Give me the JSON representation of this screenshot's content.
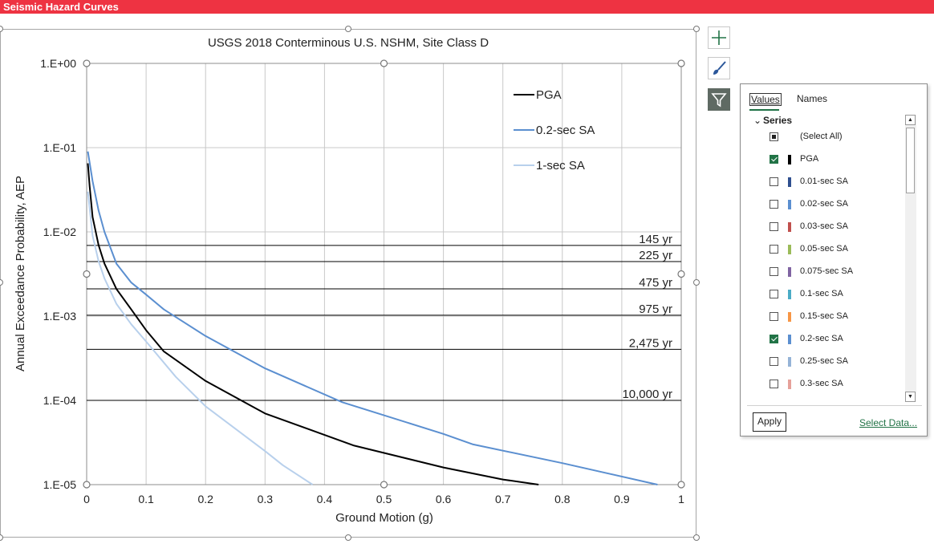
{
  "window": {
    "title": "Seismic Hazard Curves"
  },
  "chart_data": {
    "type": "line",
    "title": "USGS 2018 Conterminous U.S. NSHM, Site Class D",
    "xlabel": "Ground Motion (g)",
    "ylabel": "Annual Exceedance Probability, AEP",
    "xlim": [
      0,
      1
    ],
    "ylim": [
      1e-05,
      1
    ],
    "yscale": "log",
    "grid": true,
    "legend_position": "top-right",
    "x_ticks": [
      "0",
      "0.1",
      "0.2",
      "0.3",
      "0.4",
      "0.5",
      "0.6",
      "0.7",
      "0.8",
      "0.9",
      "1"
    ],
    "y_ticks": [
      "1.E-05",
      "1.E-04",
      "1.E-03",
      "1.E-02",
      "1.E-01",
      "1.E+00"
    ],
    "series": [
      {
        "name": "PGA",
        "color": "#000000",
        "x": [
          0.002,
          0.005,
          0.01,
          0.02,
          0.03,
          0.05,
          0.075,
          0.1,
          0.13,
          0.2,
          0.3,
          0.45,
          0.6,
          0.7,
          0.76
        ],
        "y": [
          0.065,
          0.035,
          0.015,
          0.007,
          0.0042,
          0.0021,
          0.0012,
          0.00068,
          0.00038,
          0.00017,
          7e-05,
          2.9e-05,
          1.6e-05,
          1.15e-05,
          1e-05
        ]
      },
      {
        "name": "0.2-sec SA",
        "color": "#5b8fd0",
        "x": [
          0.002,
          0.01,
          0.02,
          0.03,
          0.05,
          0.075,
          0.1,
          0.13,
          0.2,
          0.3,
          0.43,
          0.6,
          0.65,
          0.8,
          0.96
        ],
        "y": [
          0.09,
          0.04,
          0.018,
          0.01,
          0.0042,
          0.0025,
          0.0018,
          0.0012,
          0.00058,
          0.00024,
          9.5e-05,
          4e-05,
          3e-05,
          1.8e-05,
          1e-05
        ]
      },
      {
        "name": "1-sec SA",
        "color": "#b8d0ec",
        "x": [
          0.002,
          0.01,
          0.02,
          0.03,
          0.05,
          0.075,
          0.1,
          0.15,
          0.2,
          0.3,
          0.33,
          0.38
        ],
        "y": [
          0.03,
          0.009,
          0.0045,
          0.0028,
          0.0014,
          0.0008,
          0.0005,
          0.00019,
          8.5e-05,
          2.5e-05,
          1.7e-05,
          1e-05
        ]
      }
    ],
    "hazard_levels": [
      {
        "label": "145 yr",
        "aep": 0.0069
      },
      {
        "label": "225 yr",
        "aep": 0.00444
      },
      {
        "label": "475 yr",
        "aep": 0.00211
      },
      {
        "label": "975 yr",
        "aep": 0.001026
      },
      {
        "label": "2,475 yr",
        "aep": 0.000404
      },
      {
        "label": "10,000 yr",
        "aep": 0.0001
      }
    ]
  },
  "toolbar": {
    "add_element_icon": "plus-icon",
    "style_icon": "brush-icon",
    "filter_icon": "funnel-icon"
  },
  "filter_panel": {
    "tabs": [
      "Values",
      "Names"
    ],
    "group_label": "Series",
    "items": [
      {
        "label": "(Select All)",
        "state": "partial",
        "color": ""
      },
      {
        "label": "PGA",
        "state": "checked",
        "color": "#000000"
      },
      {
        "label": "0.01-sec SA",
        "state": "unchecked",
        "color": "#2f4f8f"
      },
      {
        "label": "0.02-sec SA",
        "state": "unchecked",
        "color": "#5b8fd0"
      },
      {
        "label": "0.03-sec SA",
        "state": "unchecked",
        "color": "#c0504d"
      },
      {
        "label": "0.05-sec SA",
        "state": "unchecked",
        "color": "#9bbb59"
      },
      {
        "label": "0.075-sec SA",
        "state": "unchecked",
        "color": "#8064a2"
      },
      {
        "label": "0.1-sec SA",
        "state": "unchecked",
        "color": "#4bacc6"
      },
      {
        "label": "0.15-sec SA",
        "state": "unchecked",
        "color": "#f79646"
      },
      {
        "label": "0.2-sec SA",
        "state": "checked",
        "color": "#5b8fd0"
      },
      {
        "label": "0.25-sec SA",
        "state": "unchecked",
        "color": "#95b3d7"
      },
      {
        "label": "0.3-sec SA",
        "state": "unchecked",
        "color": "#e6a19a"
      }
    ],
    "apply_label": "Apply",
    "select_data_label": "Select Data..."
  }
}
